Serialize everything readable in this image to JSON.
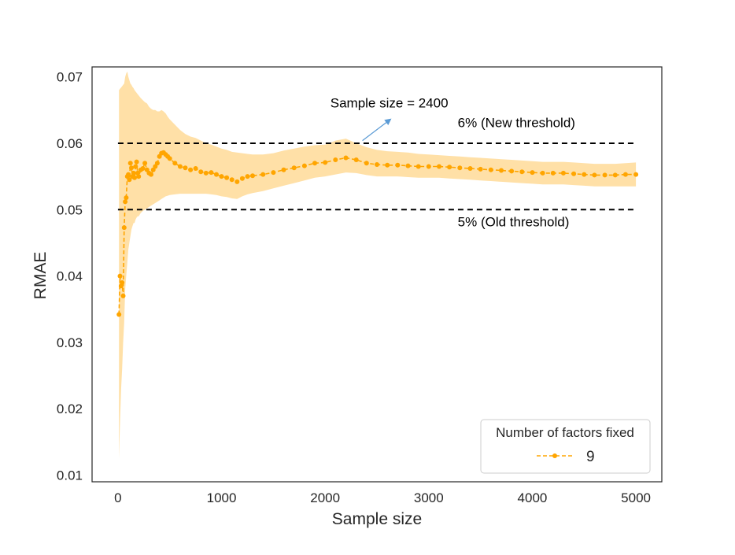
{
  "chart_data": {
    "type": "line",
    "title": "",
    "xlabel": "Sample size",
    "ylabel": "RMAE",
    "xlim": [
      -250,
      5250
    ],
    "ylim": [
      0.009,
      0.0715
    ],
    "xticks": [
      0,
      1000,
      2000,
      3000,
      4000,
      5000
    ],
    "xtick_labels": [
      "0",
      "1000",
      "2000",
      "3000",
      "4000",
      "5000"
    ],
    "yticks": [
      0.01,
      0.02,
      0.03,
      0.04,
      0.05,
      0.06,
      0.07
    ],
    "ytick_labels": [
      "0.01",
      "0.02",
      "0.03",
      "0.04",
      "0.05",
      "0.06",
      "0.07"
    ],
    "grid": false,
    "legend": {
      "title": "Number of factors fixed",
      "placement": "lower-right",
      "entries": [
        {
          "label": "9",
          "color": "#FFA500"
        }
      ]
    },
    "series": [
      {
        "name": "9",
        "color": "#FFA500",
        "band_color": "#FFD58A",
        "marker": "circle",
        "line_style": "dashed",
        "x": [
          10,
          20,
          30,
          40,
          50,
          60,
          70,
          80,
          90,
          100,
          110,
          120,
          130,
          140,
          150,
          160,
          170,
          180,
          190,
          200,
          220,
          240,
          260,
          280,
          300,
          320,
          340,
          360,
          380,
          400,
          420,
          440,
          460,
          480,
          500,
          550,
          600,
          650,
          700,
          750,
          800,
          850,
          900,
          950,
          1000,
          1050,
          1100,
          1150,
          1200,
          1250,
          1300,
          1400,
          1500,
          1600,
          1700,
          1800,
          1900,
          2000,
          2100,
          2200,
          2300,
          2400,
          2500,
          2600,
          2700,
          2800,
          2900,
          3000,
          3100,
          3200,
          3300,
          3400,
          3500,
          3600,
          3700,
          3800,
          3900,
          4000,
          4100,
          4200,
          4300,
          4400,
          4500,
          4600,
          4700,
          4800,
          4900,
          5000
        ],
        "y": [
          0.0342,
          0.04,
          0.0385,
          0.039,
          0.037,
          0.0473,
          0.0512,
          0.0518,
          0.055,
          0.0553,
          0.0545,
          0.057,
          0.0563,
          0.055,
          0.0555,
          0.0548,
          0.0565,
          0.0572,
          0.0555,
          0.055,
          0.056,
          0.0562,
          0.057,
          0.056,
          0.0555,
          0.0553,
          0.056,
          0.0565,
          0.057,
          0.058,
          0.0585,
          0.0586,
          0.0583,
          0.058,
          0.0577,
          0.057,
          0.0565,
          0.0563,
          0.056,
          0.0562,
          0.0557,
          0.0555,
          0.0556,
          0.0553,
          0.055,
          0.0548,
          0.0545,
          0.0542,
          0.0547,
          0.055,
          0.0551,
          0.0553,
          0.0556,
          0.056,
          0.0563,
          0.0566,
          0.057,
          0.0571,
          0.0575,
          0.0578,
          0.0575,
          0.057,
          0.0568,
          0.0567,
          0.0567,
          0.0566,
          0.0565,
          0.0565,
          0.0565,
          0.0564,
          0.0563,
          0.0562,
          0.0561,
          0.056,
          0.0559,
          0.0558,
          0.0557,
          0.0556,
          0.0555,
          0.0555,
          0.0555,
          0.0554,
          0.0553,
          0.0552,
          0.0552,
          0.0552,
          0.0553,
          0.0553
        ],
        "lower": [
          0.0125,
          0.018,
          0.023,
          0.026,
          0.03,
          0.033,
          0.038,
          0.04,
          0.042,
          0.044,
          0.045,
          0.046,
          0.047,
          0.0475,
          0.048,
          0.048,
          0.0485,
          0.0488,
          0.049,
          0.049,
          0.0495,
          0.0498,
          0.05,
          0.0502,
          0.0504,
          0.0506,
          0.0508,
          0.051,
          0.0512,
          0.0514,
          0.0516,
          0.0518,
          0.052,
          0.0521,
          0.0522,
          0.0523,
          0.0524,
          0.0524,
          0.0524,
          0.0524,
          0.0524,
          0.0524,
          0.0523,
          0.0522,
          0.052,
          0.0519,
          0.0517,
          0.0516,
          0.052,
          0.0523,
          0.0525,
          0.0528,
          0.0532,
          0.0536,
          0.054,
          0.0544,
          0.0548,
          0.055,
          0.0553,
          0.0556,
          0.0555,
          0.0552,
          0.055,
          0.055,
          0.055,
          0.0549,
          0.0548,
          0.0548,
          0.0548,
          0.0547,
          0.0546,
          0.0545,
          0.0544,
          0.0543,
          0.0542,
          0.0541,
          0.054,
          0.0539,
          0.0538,
          0.0538,
          0.0538,
          0.0537,
          0.0536,
          0.0535,
          0.0535,
          0.0535,
          0.0535,
          0.0535
        ],
        "upper": [
          0.068,
          0.0682,
          0.0684,
          0.0686,
          0.0688,
          0.069,
          0.07,
          0.0705,
          0.0708,
          0.07,
          0.0695,
          0.069,
          0.0688,
          0.0685,
          0.0683,
          0.068,
          0.0678,
          0.0676,
          0.0674,
          0.0672,
          0.0668,
          0.0665,
          0.0662,
          0.066,
          0.0655,
          0.0652,
          0.065,
          0.065,
          0.0648,
          0.0648,
          0.065,
          0.0648,
          0.0645,
          0.064,
          0.0636,
          0.0628,
          0.062,
          0.0614,
          0.061,
          0.0608,
          0.0604,
          0.06,
          0.0598,
          0.0595,
          0.0592,
          0.059,
          0.0587,
          0.0586,
          0.0585,
          0.0584,
          0.0583,
          0.0583,
          0.0585,
          0.0589,
          0.0592,
          0.0595,
          0.0597,
          0.0598,
          0.0604,
          0.0607,
          0.06,
          0.0594,
          0.059,
          0.0588,
          0.0587,
          0.0586,
          0.0584,
          0.0583,
          0.0582,
          0.0581,
          0.058,
          0.0579,
          0.0578,
          0.0577,
          0.0576,
          0.0575,
          0.0574,
          0.0573,
          0.0572,
          0.0572,
          0.0572,
          0.0571,
          0.057,
          0.0569,
          0.0569,
          0.0569,
          0.057,
          0.0571
        ]
      }
    ],
    "reference_lines": [
      {
        "y": 0.06,
        "x_start": 0,
        "x_end": 5000,
        "style": "dashed",
        "color": "#000000",
        "label": "6% (New threshold)"
      },
      {
        "y": 0.05,
        "x_start": 0,
        "x_end": 5000,
        "style": "dashed",
        "color": "#000000",
        "label": "5% (Old threshold)"
      }
    ],
    "annotations": [
      {
        "text": "Sample size = 2400",
        "arrow_from": [
          2360,
          0.0604
        ],
        "arrow_to": [
          2630,
          0.0636
        ],
        "text_at": [
          2050,
          0.0654
        ],
        "arrow_color": "#5B9BD5"
      }
    ],
    "threshold_label_at": {
      "x": 3280,
      "y_new": 0.0624,
      "y_old": 0.0475
    }
  }
}
